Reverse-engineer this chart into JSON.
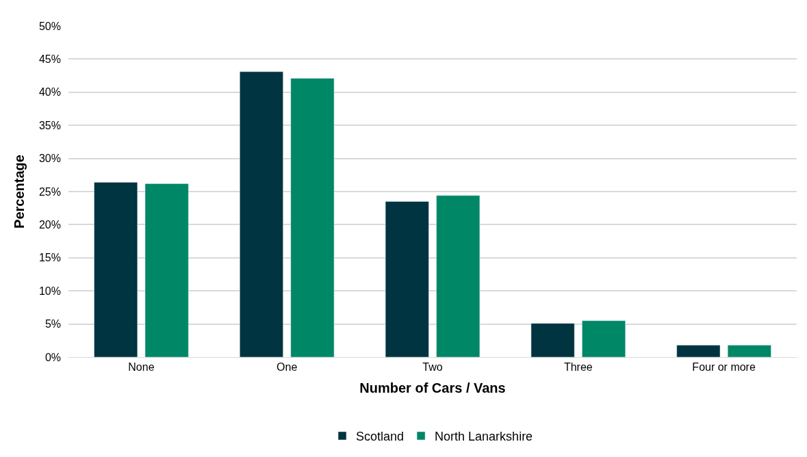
{
  "chart_data": {
    "type": "bar",
    "xlabel": "Number of Cars / Vans",
    "ylabel": "Percentage",
    "categories": [
      "None",
      "One",
      "Two",
      "Three",
      "Four or more"
    ],
    "series": [
      {
        "name": "Scotland",
        "color": "#003440",
        "values": [
          26.4,
          43.1,
          23.5,
          5.1,
          1.8
        ]
      },
      {
        "name": "North Lanarkshire",
        "color": "#008766",
        "values": [
          26.2,
          42.1,
          24.4,
          5.5,
          1.8
        ]
      }
    ],
    "ylim": [
      0,
      50
    ],
    "yticks": [
      {
        "value": 0,
        "label": "0%"
      },
      {
        "value": 5,
        "label": "5%"
      },
      {
        "value": 10,
        "label": "10%"
      },
      {
        "value": 15,
        "label": "15%"
      },
      {
        "value": 20,
        "label": "20%"
      },
      {
        "value": 25,
        "label": "25%"
      },
      {
        "value": 30,
        "label": "30%"
      },
      {
        "value": 35,
        "label": "35%"
      },
      {
        "value": 40,
        "label": "40%"
      },
      {
        "value": 45,
        "label": "45%"
      },
      {
        "value": 50,
        "label": "50%"
      }
    ],
    "grid": "y",
    "legend": "bottom"
  }
}
